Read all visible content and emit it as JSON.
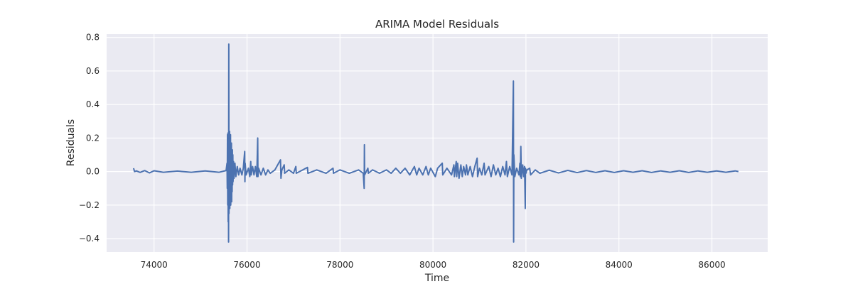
{
  "chart_data": {
    "type": "line",
    "title": "ARIMA Model Residuals",
    "xlabel": "Time",
    "ylabel": "Residuals",
    "xlim": [
      72980,
      87200
    ],
    "ylim": [
      -0.48,
      0.82
    ],
    "x_ticks": [
      74000,
      76000,
      78000,
      80000,
      82000,
      84000,
      86000
    ],
    "y_ticks": [
      -0.4,
      -0.2,
      0.0,
      0.2,
      0.4,
      0.6,
      0.8
    ],
    "x_tick_labels": [
      "74000",
      "76000",
      "78000",
      "80000",
      "82000",
      "84000",
      "86000"
    ],
    "y_tick_labels": [
      "−0.4",
      "−0.2",
      "0.0",
      "0.2",
      "0.4",
      "0.6",
      "0.8"
    ],
    "grid": true,
    "background_color": "#eaeaf2",
    "grid_color": "#ffffff",
    "series": [
      {
        "color": "#4c72b0",
        "points": [
          [
            73560,
            0.02
          ],
          [
            73580,
            0.0
          ],
          [
            73620,
            0.004
          ],
          [
            73700,
            -0.005
          ],
          [
            73800,
            0.006
          ],
          [
            73900,
            -0.008
          ],
          [
            74000,
            0.005
          ],
          [
            74200,
            -0.004
          ],
          [
            74500,
            0.003
          ],
          [
            74800,
            -0.004
          ],
          [
            75100,
            0.004
          ],
          [
            75400,
            -0.004
          ],
          [
            75550,
            0.006
          ],
          [
            75570,
            0.05
          ],
          [
            75575,
            -0.1
          ],
          [
            75580,
            0.22
          ],
          [
            75585,
            -0.2
          ],
          [
            75590,
            0.23
          ],
          [
            75595,
            -0.3
          ],
          [
            75600,
            0.1
          ],
          [
            75603,
            -0.42
          ],
          [
            75606,
            0.3
          ],
          [
            75608,
            0.76
          ],
          [
            75612,
            -0.25
          ],
          [
            75616,
            0.2
          ],
          [
            75620,
            -0.18
          ],
          [
            75625,
            0.24
          ],
          [
            75630,
            -0.22
          ],
          [
            75635,
            0.18
          ],
          [
            75640,
            -0.17
          ],
          [
            75645,
            0.22
          ],
          [
            75650,
            -0.2
          ],
          [
            75655,
            0.15
          ],
          [
            75660,
            -0.15
          ],
          [
            75665,
            0.17
          ],
          [
            75670,
            -0.18
          ],
          [
            75675,
            0.12
          ],
          [
            75680,
            -0.12
          ],
          [
            75685,
            0.13
          ],
          [
            75690,
            -0.08
          ],
          [
            75695,
            0.1
          ],
          [
            75700,
            -0.06
          ],
          [
            75710,
            0.06
          ],
          [
            75720,
            -0.04
          ],
          [
            75740,
            0.05
          ],
          [
            75760,
            -0.03
          ],
          [
            75790,
            0.03
          ],
          [
            75820,
            -0.02
          ],
          [
            75850,
            0.02
          ],
          [
            75890,
            -0.02
          ],
          [
            75920,
            0.02
          ],
          [
            75950,
            0.12
          ],
          [
            75955,
            -0.06
          ],
          [
            75960,
            0.05
          ],
          [
            75980,
            -0.02
          ],
          [
            76030,
            0.02
          ],
          [
            76060,
            -0.03
          ],
          [
            76080,
            0.06
          ],
          [
            76090,
            -0.02
          ],
          [
            76120,
            0.03
          ],
          [
            76150,
            -0.02
          ],
          [
            76180,
            0.03
          ],
          [
            76210,
            -0.03
          ],
          [
            76230,
            0.2
          ],
          [
            76235,
            -0.03
          ],
          [
            76250,
            0.02
          ],
          [
            76300,
            -0.02
          ],
          [
            76350,
            0.02
          ],
          [
            76400,
            -0.02
          ],
          [
            76450,
            0.01
          ],
          [
            76500,
            -0.01
          ],
          [
            76600,
            0.01
          ],
          [
            76720,
            0.07
          ],
          [
            76730,
            -0.04
          ],
          [
            76750,
            0.01
          ],
          [
            76800,
            0.04
          ],
          [
            76810,
            -0.01
          ],
          [
            76900,
            0.01
          ],
          [
            77000,
            -0.01
          ],
          [
            77050,
            0.03
          ],
          [
            77060,
            -0.01
          ],
          [
            77200,
            0.01
          ],
          [
            77300,
            0.025
          ],
          [
            77310,
            -0.01
          ],
          [
            77500,
            0.01
          ],
          [
            77700,
            -0.01
          ],
          [
            77850,
            0.02
          ],
          [
            77860,
            -0.01
          ],
          [
            78000,
            0.01
          ],
          [
            78200,
            -0.01
          ],
          [
            78400,
            0.01
          ],
          [
            78500,
            -0.01
          ],
          [
            78520,
            -0.1
          ],
          [
            78525,
            0.16
          ],
          [
            78530,
            -0.02
          ],
          [
            78600,
            0.02
          ],
          [
            78610,
            -0.01
          ],
          [
            78700,
            0.01
          ],
          [
            78850,
            -0.01
          ],
          [
            79000,
            0.01
          ],
          [
            79100,
            -0.01
          ],
          [
            79200,
            0.02
          ],
          [
            79300,
            -0.01
          ],
          [
            79400,
            0.02
          ],
          [
            79500,
            -0.02
          ],
          [
            79600,
            0.03
          ],
          [
            79650,
            -0.02
          ],
          [
            79700,
            0.02
          ],
          [
            79780,
            -0.02
          ],
          [
            79850,
            0.03
          ],
          [
            79900,
            -0.02
          ],
          [
            79950,
            0.02
          ],
          [
            80050,
            -0.03
          ],
          [
            80100,
            0.02
          ],
          [
            80200,
            0.05
          ],
          [
            80210,
            -0.02
          ],
          [
            80300,
            0.02
          ],
          [
            80400,
            -0.02
          ],
          [
            80450,
            0.04
          ],
          [
            80460,
            -0.03
          ],
          [
            80500,
            0.06
          ],
          [
            80510,
            -0.03
          ],
          [
            80530,
            0.05
          ],
          [
            80560,
            -0.04
          ],
          [
            80600,
            0.04
          ],
          [
            80630,
            -0.03
          ],
          [
            80660,
            0.03
          ],
          [
            80700,
            -0.02
          ],
          [
            80720,
            0.04
          ],
          [
            80750,
            -0.02
          ],
          [
            80800,
            0.03
          ],
          [
            80850,
            -0.03
          ],
          [
            80900,
            0.03
          ],
          [
            80950,
            0.08
          ],
          [
            80960,
            -0.03
          ],
          [
            81000,
            0.02
          ],
          [
            81050,
            -0.02
          ],
          [
            81100,
            0.05
          ],
          [
            81120,
            -0.02
          ],
          [
            81200,
            0.03
          ],
          [
            81250,
            -0.03
          ],
          [
            81300,
            0.04
          ],
          [
            81350,
            -0.02
          ],
          [
            81400,
            0.02
          ],
          [
            81450,
            -0.03
          ],
          [
            81500,
            0.03
          ],
          [
            81550,
            -0.02
          ],
          [
            81580,
            0.06
          ],
          [
            81600,
            -0.03
          ],
          [
            81650,
            0.03
          ],
          [
            81700,
            -0.02
          ],
          [
            81730,
            0.54
          ],
          [
            81735,
            -0.42
          ],
          [
            81740,
            0.1
          ],
          [
            81760,
            -0.03
          ],
          [
            81800,
            0.02
          ],
          [
            81850,
            -0.02
          ],
          [
            81870,
            0.05
          ],
          [
            81880,
            -0.03
          ],
          [
            81890,
            0.15
          ],
          [
            81900,
            -0.04
          ],
          [
            81930,
            0.04
          ],
          [
            81950,
            -0.03
          ],
          [
            81970,
            0.03
          ],
          [
            81985,
            -0.22
          ],
          [
            81990,
            0.02
          ],
          [
            82000,
            -0.01
          ],
          [
            82020,
            0.01
          ],
          [
            82080,
            0.02
          ],
          [
            82100,
            -0.02
          ],
          [
            82200,
            0.01
          ],
          [
            82300,
            -0.01
          ],
          [
            82500,
            0.008
          ],
          [
            82700,
            -0.008
          ],
          [
            82900,
            0.007
          ],
          [
            83100,
            -0.006
          ],
          [
            83300,
            0.006
          ],
          [
            83500,
            -0.005
          ],
          [
            83700,
            0.005
          ],
          [
            83900,
            -0.005
          ],
          [
            84100,
            0.005
          ],
          [
            84300,
            -0.004
          ],
          [
            84500,
            0.005
          ],
          [
            84700,
            -0.005
          ],
          [
            84900,
            0.004
          ],
          [
            85100,
            -0.004
          ],
          [
            85300,
            0.005
          ],
          [
            85500,
            -0.005
          ],
          [
            85700,
            0.004
          ],
          [
            85900,
            -0.004
          ],
          [
            86100,
            0.004
          ],
          [
            86300,
            -0.004
          ],
          [
            86500,
            0.004
          ],
          [
            86570,
            0.0
          ]
        ]
      }
    ]
  }
}
